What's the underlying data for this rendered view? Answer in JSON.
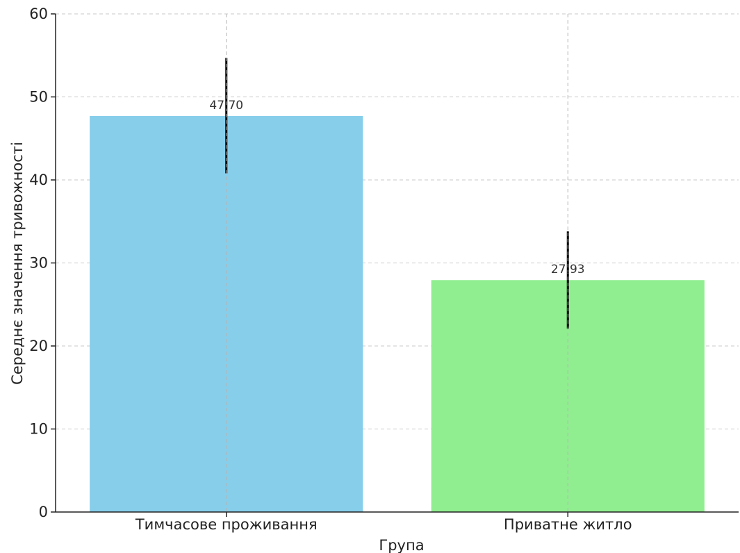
{
  "chart_data": {
    "type": "bar",
    "title": "",
    "xlabel": "Група",
    "ylabel": "Середнє значення тривожності",
    "categories": [
      "Тимчасове проживання",
      "Приватне житло"
    ],
    "values": [
      47.7,
      27.93
    ],
    "value_labels": [
      "47.70",
      "27.93"
    ],
    "error": [
      {
        "low": 40.8,
        "high": 54.7
      },
      {
        "low": 22.1,
        "high": 33.8
      }
    ],
    "colors": [
      "#87ceeb",
      "#90ee90"
    ],
    "ylim": [
      0,
      60
    ],
    "yticks": [
      0,
      10,
      20,
      30,
      40,
      50,
      60
    ],
    "ytick_labels": [
      "0",
      "10",
      "20",
      "30",
      "40",
      "50",
      "60"
    ],
    "grid": true,
    "legend": "none"
  }
}
